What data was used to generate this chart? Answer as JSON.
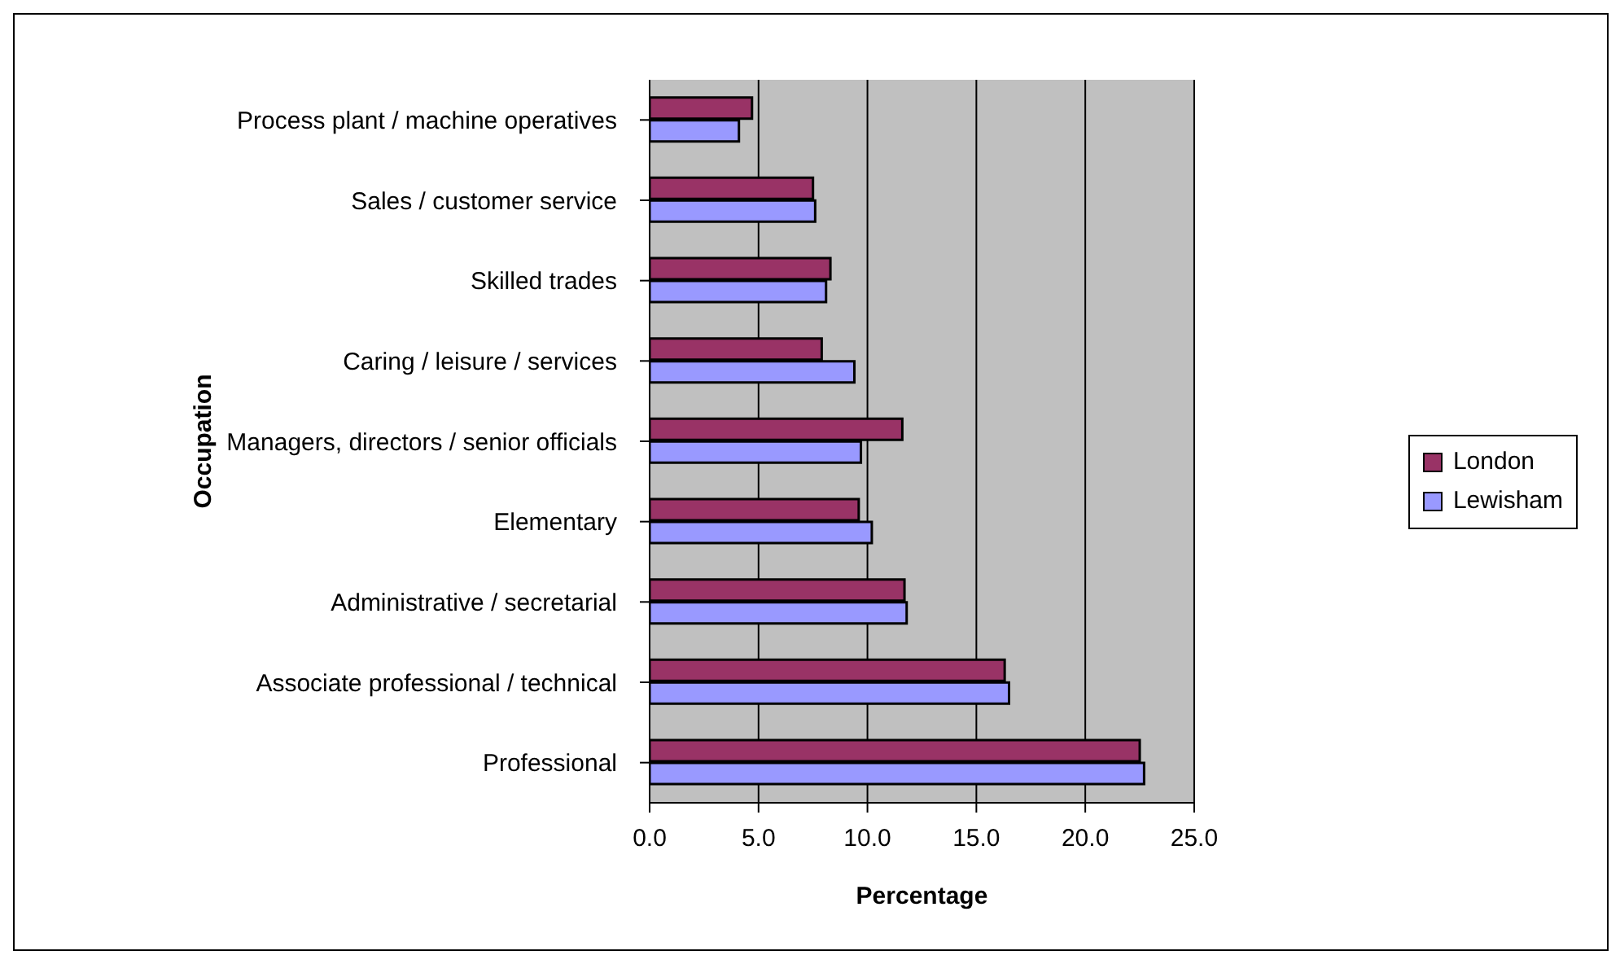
{
  "chart_data": {
    "type": "bar",
    "orientation": "horizontal",
    "xlabel": "Percentage",
    "ylabel": "Occupation",
    "categories": [
      "Process plant / machine operatives",
      "Sales / customer service",
      "Skilled trades",
      "Caring / leisure / services",
      "Managers, directors / senior officials",
      "Elementary",
      "Administrative / secretarial",
      "Associate professional / technical",
      "Professional"
    ],
    "series": [
      {
        "name": "London",
        "color": "#993366",
        "values": [
          4.7,
          7.5,
          8.3,
          7.9,
          11.6,
          9.6,
          11.7,
          16.3,
          22.5
        ]
      },
      {
        "name": "Lewisham",
        "color": "#9999ff",
        "values": [
          4.1,
          7.6,
          8.1,
          9.4,
          9.7,
          10.2,
          11.8,
          16.5,
          22.7
        ]
      }
    ],
    "xlim": [
      0,
      25
    ],
    "xticks": [
      {
        "value": 0,
        "label": "0.0"
      },
      {
        "value": 5,
        "label": "5.0"
      },
      {
        "value": 10,
        "label": "10.0"
      },
      {
        "value": 15,
        "label": "15.0"
      },
      {
        "value": 20,
        "label": "20.0"
      },
      {
        "value": 25,
        "label": "25.0"
      }
    ],
    "grid": "x",
    "legend": "right"
  }
}
